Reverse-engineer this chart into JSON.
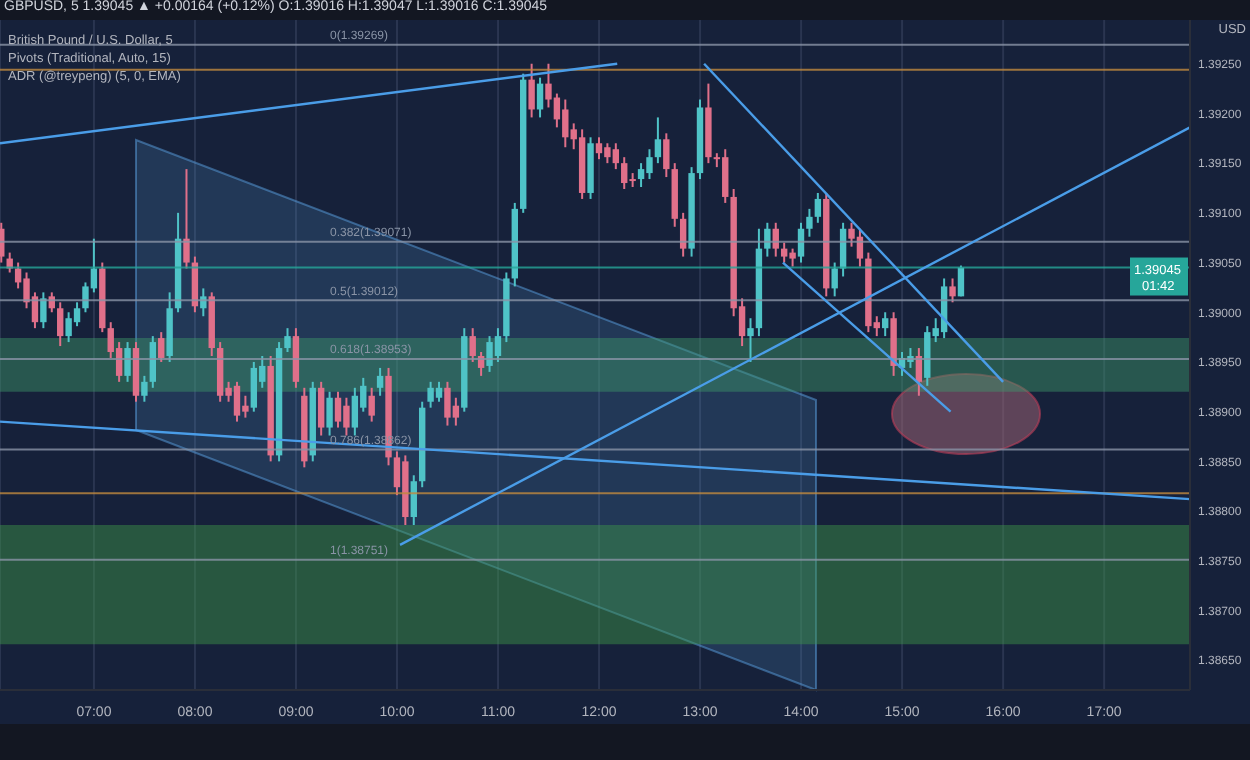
{
  "chart_data": {
    "type": "candlestick",
    "title": "GBPUSD, 5  1.39045 ▲ +0.00164 (+0.12%)  O:1.39016 H:1.39047 L:1.39016 C:1.39045",
    "ylabel": "USD",
    "annotations": [
      "British Pound / U.S. Dollar, 5",
      "Pivots (Traditional, Auto, 15)",
      "ADR (@treypeng) (5, 0, EMA)",
      "01:42"
    ],
    "x": [
      6.0833,
      6.1667,
      6.25,
      6.3333,
      6.4167,
      6.5,
      6.5833,
      6.6667,
      6.75,
      6.8333,
      6.9167,
      7,
      7.0833,
      7.1667,
      7.25,
      7.3333,
      7.4167,
      7.5,
      7.5833,
      7.6667,
      7.75,
      7.8333,
      7.9167,
      8,
      8.0833,
      8.1667,
      8.25,
      8.3333,
      8.4167,
      8.5,
      8.5833,
      8.6667,
      8.75,
      8.8333,
      8.9167,
      9,
      9.0833,
      9.1667,
      9.25,
      9.3333,
      9.4167,
      9.5,
      9.5833,
      9.6667,
      9.75,
      9.8333,
      9.9167,
      10,
      10.0833,
      10.1667,
      10.25,
      10.3333,
      10.4167,
      10.5,
      10.5833,
      10.6667,
      10.75,
      10.8333,
      10.9167,
      11,
      11.0833,
      11.1667,
      11.25,
      11.3333,
      11.4167,
      11.5,
      11.5833,
      11.6667,
      11.75,
      11.8333,
      11.9167,
      12,
      12.0833,
      12.1667,
      12.25,
      12.3333,
      12.4167,
      12.5,
      12.5833,
      12.6667,
      12.75,
      12.8333,
      12.9167,
      13,
      13.0833,
      13.1667,
      13.25,
      13.3333,
      13.4167,
      13.5,
      13.5833,
      13.6667,
      13.75,
      13.8333,
      13.9167,
      14,
      14.0833,
      14.1667,
      14.25,
      14.3333,
      14.4167,
      14.5,
      14.5833,
      14.6667,
      14.75,
      14.8333,
      14.9167,
      15,
      15.0833,
      15.1667,
      15.25,
      15.3333,
      15.4167,
      15.5,
      15.5833
    ],
    "ohlc": [
      [
        1.39084,
        1.3909,
        1.3905,
        1.39056
      ],
      [
        1.39054,
        1.3906,
        1.3904,
        1.39044
      ],
      [
        1.39044,
        1.3905,
        1.39024,
        1.3903
      ],
      [
        1.39034,
        1.3904,
        1.39004,
        1.3901
      ],
      [
        1.39016,
        1.3902,
        1.38984,
        1.3899
      ],
      [
        1.3899,
        1.3902,
        1.38984,
        1.39014
      ],
      [
        1.39016,
        1.3902,
        1.39,
        1.39004
      ],
      [
        1.39004,
        1.3901,
        1.38966,
        1.38976
      ],
      [
        1.38976,
        1.39,
        1.3897,
        1.38994
      ],
      [
        1.3899,
        1.3901,
        1.38986,
        1.39004
      ],
      [
        1.39004,
        1.3903,
        1.39,
        1.39026
      ],
      [
        1.39024,
        1.39074,
        1.3902,
        1.39044
      ],
      [
        1.39044,
        1.3905,
        1.3898,
        1.38984
      ],
      [
        1.38984,
        1.3899,
        1.38954,
        1.3896
      ],
      [
        1.38964,
        1.3897,
        1.3893,
        1.38936
      ],
      [
        1.38936,
        1.3897,
        1.3893,
        1.38964
      ],
      [
        1.38964,
        1.3897,
        1.3891,
        1.38916
      ],
      [
        1.38916,
        1.38936,
        1.3891,
        1.3893
      ],
      [
        1.3893,
        1.38976,
        1.38924,
        1.3897
      ],
      [
        1.38974,
        1.3898,
        1.3895,
        1.38954
      ],
      [
        1.38956,
        1.3902,
        1.3895,
        1.39004
      ],
      [
        1.39004,
        1.391,
        1.39,
        1.39074
      ],
      [
        1.39074,
        1.39144,
        1.39044,
        1.3905
      ],
      [
        1.3905,
        1.39056,
        1.39,
        1.39006
      ],
      [
        1.39004,
        1.39024,
        1.38996,
        1.39016
      ],
      [
        1.39016,
        1.3902,
        1.38956,
        1.38964
      ],
      [
        1.38964,
        1.3897,
        1.3891,
        1.38916
      ],
      [
        1.38924,
        1.3893,
        1.3891,
        1.38916
      ],
      [
        1.38926,
        1.3893,
        1.3889,
        1.38896
      ],
      [
        1.38906,
        1.38916,
        1.38894,
        1.389
      ],
      [
        1.38904,
        1.3895,
        1.389,
        1.38944
      ],
      [
        1.3893,
        1.38956,
        1.38924,
        1.38946
      ],
      [
        1.38946,
        1.38956,
        1.3885,
        1.38856
      ],
      [
        1.38856,
        1.3897,
        1.3885,
        1.38964
      ],
      [
        1.38964,
        1.38984,
        1.3896,
        1.38976
      ],
      [
        1.38976,
        1.38984,
        1.38924,
        1.3893
      ],
      [
        1.38916,
        1.38924,
        1.38844,
        1.3885
      ],
      [
        1.38856,
        1.3893,
        1.3885,
        1.38924
      ],
      [
        1.38924,
        1.3893,
        1.38876,
        1.38884
      ],
      [
        1.38884,
        1.3892,
        1.38876,
        1.38914
      ],
      [
        1.38914,
        1.3892,
        1.38884,
        1.3889
      ],
      [
        1.38906,
        1.38914,
        1.38876,
        1.38884
      ],
      [
        1.38884,
        1.38924,
        1.38876,
        1.38916
      ],
      [
        1.38904,
        1.38934,
        1.389,
        1.38926
      ],
      [
        1.38916,
        1.38924,
        1.3889,
        1.38896
      ],
      [
        1.38924,
        1.38944,
        1.38916,
        1.38936
      ],
      [
        1.38936,
        1.38944,
        1.38846,
        1.38854
      ],
      [
        1.38854,
        1.3886,
        1.38816,
        1.38824
      ],
      [
        1.3885,
        1.38856,
        1.38786,
        1.38794
      ],
      [
        1.38794,
        1.38836,
        1.38786,
        1.3883
      ],
      [
        1.3883,
        1.3891,
        1.38824,
        1.38904
      ],
      [
        1.3891,
        1.3893,
        1.38904,
        1.38924
      ],
      [
        1.38914,
        1.3893,
        1.3891,
        1.38924
      ],
      [
        1.38924,
        1.3893,
        1.38886,
        1.38894
      ],
      [
        1.38906,
        1.38914,
        1.38886,
        1.38894
      ],
      [
        1.38904,
        1.38984,
        1.389,
        1.38976
      ],
      [
        1.38976,
        1.38984,
        1.3895,
        1.38956
      ],
      [
        1.38956,
        1.3896,
        1.38936,
        1.38944
      ],
      [
        1.38946,
        1.38976,
        1.3894,
        1.3897
      ],
      [
        1.38956,
        1.38984,
        1.3895,
        1.38976
      ],
      [
        1.38976,
        1.3904,
        1.3897,
        1.39034
      ],
      [
        1.39034,
        1.3911,
        1.39026,
        1.39104
      ],
      [
        1.39104,
        1.3924,
        1.391,
        1.39234
      ],
      [
        1.39234,
        1.3925,
        1.39196,
        1.39204
      ],
      [
        1.39204,
        1.39236,
        1.39196,
        1.3923
      ],
      [
        1.3923,
        1.3925,
        1.39206,
        1.39214
      ],
      [
        1.39216,
        1.3922,
        1.39186,
        1.39194
      ],
      [
        1.39204,
        1.39214,
        1.39166,
        1.39176
      ],
      [
        1.39184,
        1.3919,
        1.39164,
        1.39174
      ],
      [
        1.39176,
        1.39184,
        1.39114,
        1.3912
      ],
      [
        1.3912,
        1.39176,
        1.39114,
        1.3917
      ],
      [
        1.3917,
        1.39176,
        1.39154,
        1.3916
      ],
      [
        1.39166,
        1.3917,
        1.3915,
        1.39156
      ],
      [
        1.39164,
        1.3917,
        1.39144,
        1.3915
      ],
      [
        1.3915,
        1.39156,
        1.39124,
        1.3913
      ],
      [
        1.39134,
        1.3914,
        1.39126,
        1.39132
      ],
      [
        1.39134,
        1.3915,
        1.39126,
        1.39144
      ],
      [
        1.3914,
        1.39164,
        1.39134,
        1.39156
      ],
      [
        1.39156,
        1.39196,
        1.3915,
        1.39174
      ],
      [
        1.39174,
        1.3918,
        1.39136,
        1.39144
      ],
      [
        1.39144,
        1.3915,
        1.39086,
        1.39094
      ],
      [
        1.39094,
        1.391,
        1.39056,
        1.39064
      ],
      [
        1.39064,
        1.39146,
        1.39056,
        1.3914
      ],
      [
        1.3914,
        1.39214,
        1.39134,
        1.39206
      ],
      [
        1.39206,
        1.3923,
        1.3915,
        1.39156
      ],
      [
        1.39156,
        1.3916,
        1.39146,
        1.39154
      ],
      [
        1.39156,
        1.39164,
        1.3911,
        1.39116
      ],
      [
        1.39116,
        1.39124,
        1.38996,
        1.39004
      ],
      [
        1.39006,
        1.39014,
        1.38966,
        1.38976
      ],
      [
        1.38976,
        1.38994,
        1.3895,
        1.38984
      ],
      [
        1.38984,
        1.39084,
        1.38976,
        1.39064
      ],
      [
        1.39064,
        1.3909,
        1.39056,
        1.39084
      ],
      [
        1.39084,
        1.3909,
        1.39056,
        1.39064
      ],
      [
        1.39064,
        1.3907,
        1.3905,
        1.39056
      ],
      [
        1.3906,
        1.39064,
        1.39046,
        1.39054
      ],
      [
        1.39056,
        1.3909,
        1.3905,
        1.39084
      ],
      [
        1.39084,
        1.39104,
        1.39076,
        1.39096
      ],
      [
        1.39096,
        1.3912,
        1.3909,
        1.39114
      ],
      [
        1.39114,
        1.3912,
        1.39016,
        1.39024
      ],
      [
        1.39024,
        1.3905,
        1.39016,
        1.39044
      ],
      [
        1.39044,
        1.3909,
        1.39036,
        1.39084
      ],
      [
        1.39084,
        1.3909,
        1.39066,
        1.39074
      ],
      [
        1.39076,
        1.39084,
        1.39046,
        1.39054
      ],
      [
        1.39054,
        1.3906,
        1.3898,
        1.38986
      ],
      [
        1.3899,
        1.38996,
        1.38976,
        1.38984
      ],
      [
        1.38984,
        1.39,
        1.38976,
        1.38994
      ],
      [
        1.38994,
        1.39,
        1.38936,
        1.38946
      ],
      [
        1.38944,
        1.3896,
        1.38936,
        1.38954
      ],
      [
        1.3895,
        1.38964,
        1.38944,
        1.38956
      ],
      [
        1.38956,
        1.38964,
        1.38916,
        1.3893
      ],
      [
        1.38934,
        1.38986,
        1.38926,
        1.3898
      ],
      [
        1.38976,
        1.38994,
        1.3897,
        1.38984
      ],
      [
        1.3898,
        1.39034,
        1.38974,
        1.39026
      ],
      [
        1.39026,
        1.39034,
        1.3901,
        1.39016
      ],
      [
        1.39016,
        1.39047,
        1.39016,
        1.39045
      ]
    ],
    "series": [
      {
        "type": "line",
        "color": "#4a9de8",
        "x": [
          10.03,
          17.85
        ],
        "values": [
          1.38766,
          1.39186
        ]
      },
      {
        "type": "line",
        "color": "#4a9de8",
        "x": [
          13.04,
          16.0
        ],
        "values": [
          1.3925,
          1.3893
        ]
      },
      {
        "type": "line",
        "color": "#4a9de8",
        "x": [
          13.82,
          15.48
        ],
        "values": [
          1.3905,
          1.389
        ]
      },
      {
        "type": "line",
        "color": "#4a9de8",
        "x": [
          6.07,
          17.85
        ],
        "values": [
          1.3889,
          1.38812
        ]
      },
      {
        "type": "line",
        "color": "#4a9de8",
        "x": [
          6.07,
          12.18
        ],
        "values": [
          1.3917,
          1.3925
        ]
      }
    ],
    "xlim": [
      6.07,
      17.85
    ],
    "xticks": [
      {
        "value": 7,
        "label": "07:00"
      },
      {
        "value": 8,
        "label": "08:00"
      },
      {
        "value": 9,
        "label": "09:00"
      },
      {
        "value": 10,
        "label": "10:00"
      },
      {
        "value": 11,
        "label": "11:00"
      },
      {
        "value": 12,
        "label": "12:00"
      },
      {
        "value": 13,
        "label": "13:00"
      },
      {
        "value": 14,
        "label": "14:00"
      },
      {
        "value": 15,
        "label": "15:00"
      },
      {
        "value": 16,
        "label": "16:00"
      },
      {
        "value": 17,
        "label": "17:00"
      }
    ],
    "ylim": [
      1.3862,
      1.39294
    ],
    "yticks": [
      {
        "value": 1.3865,
        "label": "1.38650"
      },
      {
        "value": 1.387,
        "label": "1.38700"
      },
      {
        "value": 1.3875,
        "label": "1.38750"
      },
      {
        "value": 1.388,
        "label": "1.38800"
      },
      {
        "value": 1.3885,
        "label": "1.38850"
      },
      {
        "value": 1.389,
        "label": "1.38900"
      },
      {
        "value": 1.3895,
        "label": "1.38950"
      },
      {
        "value": 1.39,
        "label": "1.39000"
      },
      {
        "value": 1.3905,
        "label": "1.39050"
      },
      {
        "value": 1.391,
        "label": "1.39100"
      },
      {
        "value": 1.3915,
        "label": "1.39150"
      },
      {
        "value": 1.392,
        "label": "1.39200"
      },
      {
        "value": 1.3925,
        "label": "1.39250"
      }
    ],
    "ref_lines": [
      {
        "axis": "y",
        "value": 1.39269,
        "label": "0(1.39269)",
        "color": "#8a94a6"
      },
      {
        "axis": "y",
        "value": 1.39071,
        "label": "0.382(1.39071)",
        "color": "#8a94a6"
      },
      {
        "axis": "y",
        "value": 1.39012,
        "label": "0.5(1.39012)",
        "color": "#8a94a6"
      },
      {
        "axis": "y",
        "value": 1.38953,
        "label": "0.618(1.38953)",
        "color": "#8a94a6"
      },
      {
        "axis": "y",
        "value": 1.38862,
        "label": "0.786(1.38862)",
        "color": "#8a94a6"
      },
      {
        "axis": "y",
        "value": 1.38751,
        "label": "1(1.38751)",
        "color": "#8a94a6"
      },
      {
        "axis": "y",
        "value": 1.39244,
        "color": "#c08a3e"
      },
      {
        "axis": "y",
        "value": 1.38818,
        "color": "#c08a3e"
      },
      {
        "axis": "y",
        "value": 1.39045,
        "label": "1.39045",
        "color": "#26a69a"
      }
    ],
    "bands": [
      {
        "axis": "y",
        "from": 1.3892,
        "to": 1.38974,
        "color": "#3f9a6a"
      },
      {
        "axis": "y",
        "from": 1.38666,
        "to": 1.38786,
        "color": "#3f9a4a"
      }
    ],
    "grid": "x",
    "legend": false
  }
}
